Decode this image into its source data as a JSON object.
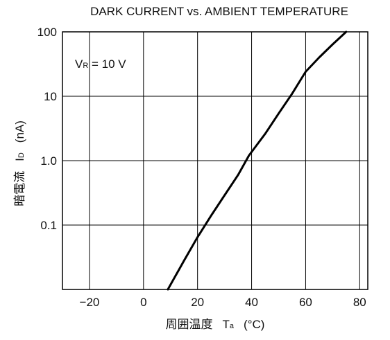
{
  "chart_data": {
    "type": "line",
    "title": "DARK CURRENT vs. AMBIENT TEMPERATURE",
    "xlabel": {
      "main": "周囲温度",
      "symbol": "T",
      "sub": "a",
      "unit": "(°C)"
    },
    "ylabel": {
      "main": "暗電流",
      "symbol": "I",
      "sub": "D",
      "unit": "(nA)"
    },
    "xlim": [
      -30,
      83
    ],
    "ylim": [
      0.01,
      100
    ],
    "yscale": "log",
    "grid": true,
    "x_ticks": [
      -20,
      0,
      20,
      40,
      60,
      80
    ],
    "x_tick_labels": [
      "−20",
      "0",
      "20",
      "40",
      "60",
      "80"
    ],
    "y_ticks": [
      0.1,
      1,
      10,
      100
    ],
    "y_tick_labels": [
      "0.1",
      "1.0",
      "10",
      "100"
    ],
    "annotation": {
      "symbol": "V",
      "sub": "R",
      "text": " = 10 V"
    },
    "series": [
      {
        "x": [
          9,
          15,
          20,
          25,
          30,
          35,
          39,
          45,
          50,
          55,
          60,
          65,
          70,
          75
        ],
        "y": [
          0.01,
          0.028,
          0.065,
          0.14,
          0.29,
          0.6,
          1.2,
          2.6,
          5.4,
          11,
          24,
          40,
          64,
          100
        ]
      }
    ]
  }
}
